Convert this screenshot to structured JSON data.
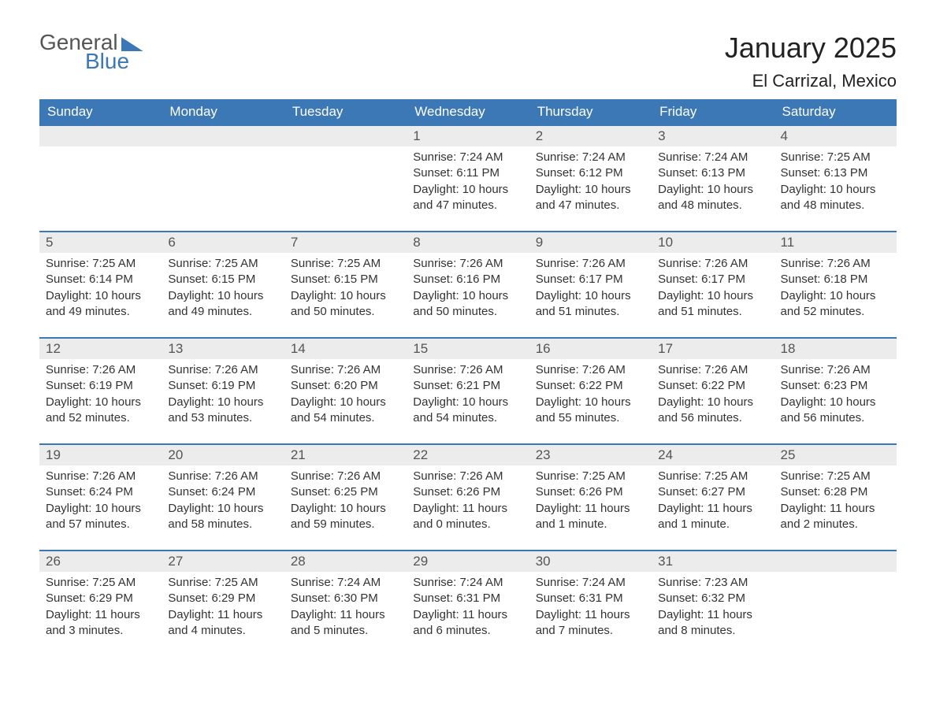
{
  "logo": {
    "word1": "General",
    "word2": "Blue"
  },
  "title": "January 2025",
  "location": "El Carrizal, Mexico",
  "colors": {
    "brand_blue": "#3b78b5",
    "header_text": "#ffffff",
    "daynum_bg": "#ececec",
    "body_text": "#333333",
    "page_bg": "#ffffff"
  },
  "typography": {
    "title_fontsize": 36,
    "location_fontsize": 22,
    "header_fontsize": 17,
    "daynum_fontsize": 17,
    "body_fontsize": 15
  },
  "layout": {
    "columns": 7,
    "rows": 5
  },
  "day_headers": [
    "Sunday",
    "Monday",
    "Tuesday",
    "Wednesday",
    "Thursday",
    "Friday",
    "Saturday"
  ],
  "weeks": [
    [
      {
        "empty": true
      },
      {
        "empty": true
      },
      {
        "empty": true
      },
      {
        "num": "1",
        "sunrise": "Sunrise: 7:24 AM",
        "sunset": "Sunset: 6:11 PM",
        "dl1": "Daylight: 10 hours",
        "dl2": "and 47 minutes."
      },
      {
        "num": "2",
        "sunrise": "Sunrise: 7:24 AM",
        "sunset": "Sunset: 6:12 PM",
        "dl1": "Daylight: 10 hours",
        "dl2": "and 47 minutes."
      },
      {
        "num": "3",
        "sunrise": "Sunrise: 7:24 AM",
        "sunset": "Sunset: 6:13 PM",
        "dl1": "Daylight: 10 hours",
        "dl2": "and 48 minutes."
      },
      {
        "num": "4",
        "sunrise": "Sunrise: 7:25 AM",
        "sunset": "Sunset: 6:13 PM",
        "dl1": "Daylight: 10 hours",
        "dl2": "and 48 minutes."
      }
    ],
    [
      {
        "num": "5",
        "sunrise": "Sunrise: 7:25 AM",
        "sunset": "Sunset: 6:14 PM",
        "dl1": "Daylight: 10 hours",
        "dl2": "and 49 minutes."
      },
      {
        "num": "6",
        "sunrise": "Sunrise: 7:25 AM",
        "sunset": "Sunset: 6:15 PM",
        "dl1": "Daylight: 10 hours",
        "dl2": "and 49 minutes."
      },
      {
        "num": "7",
        "sunrise": "Sunrise: 7:25 AM",
        "sunset": "Sunset: 6:15 PM",
        "dl1": "Daylight: 10 hours",
        "dl2": "and 50 minutes."
      },
      {
        "num": "8",
        "sunrise": "Sunrise: 7:26 AM",
        "sunset": "Sunset: 6:16 PM",
        "dl1": "Daylight: 10 hours",
        "dl2": "and 50 minutes."
      },
      {
        "num": "9",
        "sunrise": "Sunrise: 7:26 AM",
        "sunset": "Sunset: 6:17 PM",
        "dl1": "Daylight: 10 hours",
        "dl2": "and 51 minutes."
      },
      {
        "num": "10",
        "sunrise": "Sunrise: 7:26 AM",
        "sunset": "Sunset: 6:17 PM",
        "dl1": "Daylight: 10 hours",
        "dl2": "and 51 minutes."
      },
      {
        "num": "11",
        "sunrise": "Sunrise: 7:26 AM",
        "sunset": "Sunset: 6:18 PM",
        "dl1": "Daylight: 10 hours",
        "dl2": "and 52 minutes."
      }
    ],
    [
      {
        "num": "12",
        "sunrise": "Sunrise: 7:26 AM",
        "sunset": "Sunset: 6:19 PM",
        "dl1": "Daylight: 10 hours",
        "dl2": "and 52 minutes."
      },
      {
        "num": "13",
        "sunrise": "Sunrise: 7:26 AM",
        "sunset": "Sunset: 6:19 PM",
        "dl1": "Daylight: 10 hours",
        "dl2": "and 53 minutes."
      },
      {
        "num": "14",
        "sunrise": "Sunrise: 7:26 AM",
        "sunset": "Sunset: 6:20 PM",
        "dl1": "Daylight: 10 hours",
        "dl2": "and 54 minutes."
      },
      {
        "num": "15",
        "sunrise": "Sunrise: 7:26 AM",
        "sunset": "Sunset: 6:21 PM",
        "dl1": "Daylight: 10 hours",
        "dl2": "and 54 minutes."
      },
      {
        "num": "16",
        "sunrise": "Sunrise: 7:26 AM",
        "sunset": "Sunset: 6:22 PM",
        "dl1": "Daylight: 10 hours",
        "dl2": "and 55 minutes."
      },
      {
        "num": "17",
        "sunrise": "Sunrise: 7:26 AM",
        "sunset": "Sunset: 6:22 PM",
        "dl1": "Daylight: 10 hours",
        "dl2": "and 56 minutes."
      },
      {
        "num": "18",
        "sunrise": "Sunrise: 7:26 AM",
        "sunset": "Sunset: 6:23 PM",
        "dl1": "Daylight: 10 hours",
        "dl2": "and 56 minutes."
      }
    ],
    [
      {
        "num": "19",
        "sunrise": "Sunrise: 7:26 AM",
        "sunset": "Sunset: 6:24 PM",
        "dl1": "Daylight: 10 hours",
        "dl2": "and 57 minutes."
      },
      {
        "num": "20",
        "sunrise": "Sunrise: 7:26 AM",
        "sunset": "Sunset: 6:24 PM",
        "dl1": "Daylight: 10 hours",
        "dl2": "and 58 minutes."
      },
      {
        "num": "21",
        "sunrise": "Sunrise: 7:26 AM",
        "sunset": "Sunset: 6:25 PM",
        "dl1": "Daylight: 10 hours",
        "dl2": "and 59 minutes."
      },
      {
        "num": "22",
        "sunrise": "Sunrise: 7:26 AM",
        "sunset": "Sunset: 6:26 PM",
        "dl1": "Daylight: 11 hours",
        "dl2": "and 0 minutes."
      },
      {
        "num": "23",
        "sunrise": "Sunrise: 7:25 AM",
        "sunset": "Sunset: 6:26 PM",
        "dl1": "Daylight: 11 hours",
        "dl2": "and 1 minute."
      },
      {
        "num": "24",
        "sunrise": "Sunrise: 7:25 AM",
        "sunset": "Sunset: 6:27 PM",
        "dl1": "Daylight: 11 hours",
        "dl2": "and 1 minute."
      },
      {
        "num": "25",
        "sunrise": "Sunrise: 7:25 AM",
        "sunset": "Sunset: 6:28 PM",
        "dl1": "Daylight: 11 hours",
        "dl2": "and 2 minutes."
      }
    ],
    [
      {
        "num": "26",
        "sunrise": "Sunrise: 7:25 AM",
        "sunset": "Sunset: 6:29 PM",
        "dl1": "Daylight: 11 hours",
        "dl2": "and 3 minutes."
      },
      {
        "num": "27",
        "sunrise": "Sunrise: 7:25 AM",
        "sunset": "Sunset: 6:29 PM",
        "dl1": "Daylight: 11 hours",
        "dl2": "and 4 minutes."
      },
      {
        "num": "28",
        "sunrise": "Sunrise: 7:24 AM",
        "sunset": "Sunset: 6:30 PM",
        "dl1": "Daylight: 11 hours",
        "dl2": "and 5 minutes."
      },
      {
        "num": "29",
        "sunrise": "Sunrise: 7:24 AM",
        "sunset": "Sunset: 6:31 PM",
        "dl1": "Daylight: 11 hours",
        "dl2": "and 6 minutes."
      },
      {
        "num": "30",
        "sunrise": "Sunrise: 7:24 AM",
        "sunset": "Sunset: 6:31 PM",
        "dl1": "Daylight: 11 hours",
        "dl2": "and 7 minutes."
      },
      {
        "num": "31",
        "sunrise": "Sunrise: 7:23 AM",
        "sunset": "Sunset: 6:32 PM",
        "dl1": "Daylight: 11 hours",
        "dl2": "and 8 minutes."
      },
      {
        "empty": true
      }
    ]
  ]
}
